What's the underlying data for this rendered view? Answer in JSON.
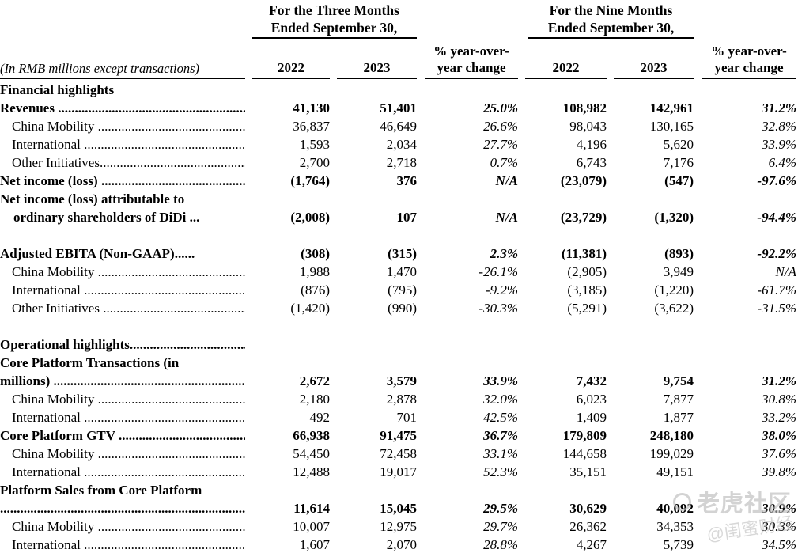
{
  "header": {
    "row_label_note": "(In RMB millions except transactions)",
    "groups": [
      {
        "line1": "For the Three Months",
        "line2": "Ended September 30,"
      },
      {
        "line1": "For the Nine Months",
        "line2": "Ended September 30,"
      }
    ],
    "y2022": "2022",
    "y2023": "2023",
    "pct_line1": "% year-over-",
    "pct_line2": "year change"
  },
  "table": {
    "columns": [
      "3M 2022",
      "3M 2023",
      "3M % year-over-year change",
      "9M 2022",
      "9M 2023",
      "9M % year-over-year change"
    ],
    "rows": [
      {
        "bold": true,
        "lines": [
          "Financial highlights"
        ],
        "values": [
          "",
          "",
          "",
          "",
          "",
          ""
        ]
      },
      {
        "bold": true,
        "lines": [
          "Revenues ........................................................."
        ],
        "values": [
          "41,130",
          "51,401",
          "25.0%",
          "108,982",
          "142,961",
          "31.2%"
        ]
      },
      {
        "indent": true,
        "lines": [
          "China Mobility ................................................"
        ],
        "values": [
          "36,837",
          "46,649",
          "26.6%",
          "98,043",
          "130,165",
          "32.8%"
        ]
      },
      {
        "indent": true,
        "lines": [
          "International ...................................................."
        ],
        "values": [
          "1,593",
          "2,034",
          "27.7%",
          "4,196",
          "5,620",
          "33.9%"
        ]
      },
      {
        "indent": true,
        "lines": [
          "Other Initiatives.............................................."
        ],
        "values": [
          "2,700",
          "2,718",
          "0.7%",
          "6,743",
          "7,176",
          "6.4%"
        ]
      },
      {
        "bold": true,
        "lines": [
          "Net income (loss) ..........................................."
        ],
        "values": [
          "(1,764)",
          "376",
          "N/A",
          "(23,079)",
          "(547)",
          "-97.6%"
        ]
      },
      {
        "bold": true,
        "indent2": true,
        "lines": [
          "Net income (loss) attributable to",
          "ordinary shareholders of DiDi ..."
        ],
        "values": [
          "(2,008)",
          "107",
          "N/A",
          "(23,729)",
          "(1,320)",
          "-94.4%"
        ]
      },
      {
        "spacer": true
      },
      {
        "bold": true,
        "lines": [
          "Adjusted EBITA (Non-GAAP)......"
        ],
        "values": [
          "(308)",
          "(315)",
          "2.3%",
          "(11,381)",
          "(893)",
          "-92.2%"
        ]
      },
      {
        "indent": true,
        "lines": [
          "China Mobility ................................................"
        ],
        "values": [
          "1,988",
          "1,470",
          "-26.1%",
          "(2,905)",
          "3,949",
          "N/A"
        ]
      },
      {
        "indent": true,
        "lines": [
          "International ...................................................."
        ],
        "values": [
          "(876)",
          "(795)",
          "-9.2%",
          "(3,185)",
          "(1,220)",
          "-61.7%"
        ]
      },
      {
        "indent": true,
        "lines": [
          "Other Initiatives ............................................."
        ],
        "values": [
          "(1,420)",
          "(990)",
          "-30.3%",
          "(5,291)",
          "(3,622)",
          "-31.5%"
        ]
      },
      {
        "spacer": true
      },
      {
        "bold": true,
        "lines": [
          "Operational highlights....................................."
        ],
        "values": [
          "",
          "",
          "",
          "",
          "",
          ""
        ]
      },
      {
        "bold": true,
        "lines": [
          "Core Platform Transactions (in",
          "millions) .........................................................."
        ],
        "values": [
          "2,672",
          "3,579",
          "33.9%",
          "7,432",
          "9,754",
          "31.2%"
        ]
      },
      {
        "indent": true,
        "lines": [
          "China Mobility ................................................"
        ],
        "values": [
          "2,180",
          "2,878",
          "32.0%",
          "6,023",
          "7,877",
          "30.8%"
        ]
      },
      {
        "indent": true,
        "lines": [
          "International ...................................................."
        ],
        "values": [
          "492",
          "701",
          "42.5%",
          "1,409",
          "1,877",
          "33.2%"
        ]
      },
      {
        "bold": true,
        "lines": [
          "Core Platform GTV ......................................."
        ],
        "values": [
          "66,938",
          "91,475",
          "36.7%",
          "179,809",
          "248,180",
          "38.0%"
        ]
      },
      {
        "indent": true,
        "lines": [
          "China Mobility ................................................"
        ],
        "values": [
          "54,450",
          "72,458",
          "33.1%",
          "144,658",
          "199,029",
          "37.6%"
        ]
      },
      {
        "indent": true,
        "lines": [
          "International ...................................................."
        ],
        "values": [
          "12,488",
          "19,017",
          "52.3%",
          "35,151",
          "49,151",
          "39.8%"
        ]
      },
      {
        "bold": true,
        "lines": [
          "Platform Sales from Core Platform",
          "................................................................................"
        ],
        "values": [
          "11,614",
          "15,045",
          "29.5%",
          "30,629",
          "40,092",
          "30.9%"
        ]
      },
      {
        "indent": true,
        "lines": [
          "China Mobility ................................................"
        ],
        "values": [
          "10,007",
          "12,975",
          "29.7%",
          "26,362",
          "34,353",
          "30.3%"
        ]
      },
      {
        "indent": true,
        "lines": [
          "International ...................................................."
        ],
        "values": [
          "1,607",
          "2,070",
          "28.8%",
          "4,267",
          "5,739",
          "34.5%"
        ]
      }
    ]
  },
  "watermark": {
    "brand": "老虎社区",
    "handle": "@闺蜜财经"
  }
}
